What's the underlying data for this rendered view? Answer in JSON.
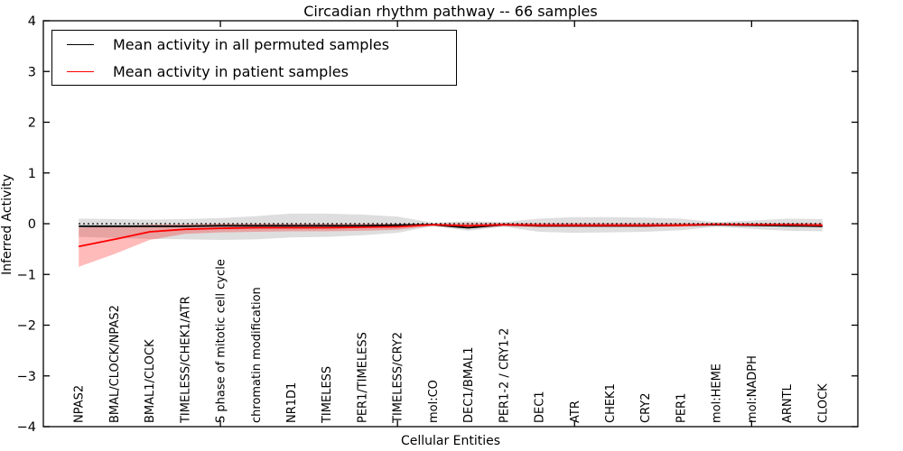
{
  "chart": {
    "title": "Circadian rhythm pathway -- 66 samples",
    "xlabel": "Cellular Entities",
    "ylabel": "Inferred Activity"
  },
  "legend": {
    "entries": [
      {
        "label": "Mean activity in all permuted samples",
        "color": "#000000"
      },
      {
        "label": "Mean activity in patient samples",
        "color": "#ff0000"
      }
    ]
  },
  "chart_data": {
    "type": "line",
    "title": "Circadian rhythm pathway -- 66 samples",
    "xlabel": "Cellular Entities",
    "ylabel": "Inferred Activity",
    "ylim": [
      -4,
      4
    ],
    "xlim": [
      0,
      23
    ],
    "grid": false,
    "legend_position": "upper left",
    "ytick_values": [
      4,
      3,
      2,
      1,
      0,
      -1,
      -2,
      -3,
      -4
    ],
    "ytick_labels": [
      "4",
      "3",
      "2",
      "1",
      "0",
      "−1",
      "−2",
      "−3",
      "−4"
    ],
    "x_major_tick_values": [
      5,
      10,
      15,
      20
    ],
    "categories": [
      "NPAS2",
      "BMAL/CLOCK/NPAS2",
      "BMAL1/CLOCK",
      "TIMELESS/CHEK1/ATR",
      "S phase of mitotic cell cycle",
      "chromatin modification",
      "NR1D1",
      "TIMELESS",
      "PER1/TIMELESS",
      "TIMELESS/CRY2",
      "mol:CO",
      "DEC1/BMAL1",
      "PER1-2 / CRY1-2",
      "DEC1",
      "ATR",
      "CHEK1",
      "CRY2",
      "PER1",
      "mol:HEME",
      "mol:NADPH",
      "ARNTL",
      "CLOCK"
    ],
    "x": [
      1,
      2,
      3,
      4,
      5,
      6,
      7,
      8,
      9,
      10,
      11,
      12,
      13,
      14,
      15,
      16,
      17,
      18,
      19,
      20,
      21,
      22
    ],
    "series": [
      {
        "name": "Mean activity in all permuted samples",
        "color": "#000000",
        "values": [
          -0.05,
          -0.05,
          -0.05,
          -0.05,
          -0.04,
          -0.04,
          -0.04,
          -0.04,
          -0.04,
          -0.03,
          -0.02,
          -0.08,
          -0.02,
          -0.04,
          -0.04,
          -0.04,
          -0.04,
          -0.03,
          -0.02,
          -0.03,
          -0.04,
          -0.05
        ]
      },
      {
        "name": "Mean activity in patient samples",
        "color": "#ff0000",
        "values": [
          -0.45,
          -0.31,
          -0.16,
          -0.11,
          -0.09,
          -0.08,
          -0.08,
          -0.08,
          -0.07,
          -0.06,
          -0.02,
          -0.04,
          -0.02,
          -0.03,
          -0.03,
          -0.03,
          -0.03,
          -0.03,
          -0.01,
          -0.02,
          -0.02,
          -0.03
        ]
      }
    ],
    "bands": [
      {
        "name": "permuted-samples-range",
        "color": "#000000",
        "opacity": 0.13,
        "upper": [
          0.1,
          0.09,
          0.08,
          0.09,
          0.11,
          0.15,
          0.2,
          0.2,
          0.18,
          0.14,
          0.02,
          0.05,
          0.03,
          0.1,
          0.13,
          0.13,
          0.12,
          0.1,
          0.03,
          0.06,
          0.1,
          0.09
        ],
        "lower": [
          -0.26,
          -0.28,
          -0.3,
          -0.31,
          -0.32,
          -0.31,
          -0.27,
          -0.26,
          -0.23,
          -0.18,
          -0.05,
          -0.14,
          -0.06,
          -0.16,
          -0.18,
          -0.17,
          -0.16,
          -0.13,
          -0.06,
          -0.1,
          -0.14,
          -0.15
        ]
      },
      {
        "name": "patient-samples-range",
        "color": "#ff0000",
        "opacity": 0.27,
        "upper": [
          -0.08,
          -0.05,
          -0.02,
          -0.01,
          0.0,
          0.0,
          0.0,
          0.0,
          0.0,
          0.0,
          0.0,
          0.01,
          0.01,
          0.01,
          0.01,
          0.01,
          0.01,
          0.01,
          0.01,
          0.01,
          0.01,
          0.01
        ],
        "lower": [
          -0.85,
          -0.6,
          -0.32,
          -0.2,
          -0.17,
          -0.16,
          -0.15,
          -0.15,
          -0.14,
          -0.12,
          -0.04,
          -0.09,
          -0.05,
          -0.07,
          -0.07,
          -0.07,
          -0.07,
          -0.06,
          -0.03,
          -0.04,
          -0.05,
          -0.07
        ]
      }
    ],
    "reference_line": {
      "y": 0,
      "style": "dotted",
      "color": "#000000"
    }
  }
}
